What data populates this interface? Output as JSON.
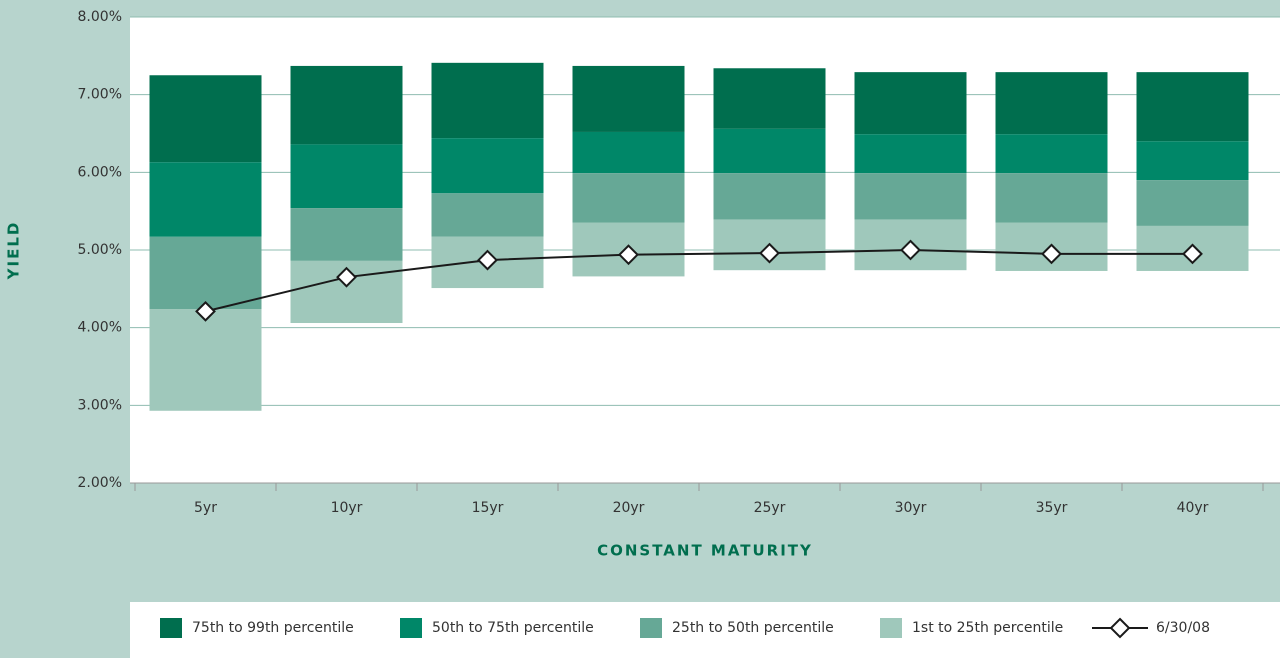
{
  "chart_data": {
    "type": "bar",
    "x_label": "CONSTANT MATURITY",
    "y_label": "YIELD",
    "categories": [
      "5yr",
      "10yr",
      "15yr",
      "20yr",
      "25yr",
      "30yr",
      "35yr",
      "40yr"
    ],
    "ylim": [
      2,
      8
    ],
    "yticks": [
      {
        "value": 2,
        "label": "2.00%"
      },
      {
        "value": 3,
        "label": "3.00%"
      },
      {
        "value": 4,
        "label": "4.00%"
      },
      {
        "value": 5,
        "label": "5.00%"
      },
      {
        "value": 6,
        "label": "6.00%"
      },
      {
        "value": 7,
        "label": "7.00%"
      },
      {
        "value": 8,
        "label": "8.00%"
      }
    ],
    "grid": true,
    "legend": "bottom",
    "series": [
      {
        "name": "75th to 99th percentile",
        "color": "#006e4e",
        "values": [
          [
            6.13,
            7.25
          ],
          [
            6.36,
            7.37
          ],
          [
            6.44,
            7.41
          ],
          [
            6.52,
            7.37
          ],
          [
            6.56,
            7.34
          ],
          [
            6.49,
            7.29
          ],
          [
            6.49,
            7.29
          ],
          [
            6.4,
            7.29
          ]
        ]
      },
      {
        "name": "50th to 75th percentile",
        "color": "#008768",
        "values": [
          [
            5.17,
            6.13
          ],
          [
            5.54,
            6.36
          ],
          [
            5.73,
            6.44
          ],
          [
            5.99,
            6.52
          ],
          [
            5.99,
            6.56
          ],
          [
            5.99,
            6.49
          ],
          [
            5.99,
            6.49
          ],
          [
            5.9,
            6.4
          ]
        ]
      },
      {
        "name": "25th to 50th percentile",
        "color": "#66a896",
        "values": [
          [
            4.24,
            5.17
          ],
          [
            4.86,
            5.54
          ],
          [
            5.17,
            5.73
          ],
          [
            5.35,
            5.99
          ],
          [
            5.39,
            5.99
          ],
          [
            5.39,
            5.99
          ],
          [
            5.35,
            5.99
          ],
          [
            5.31,
            5.9
          ]
        ]
      },
      {
        "name": "1st to 25th percentile",
        "color": "#9fc8bb",
        "values": [
          [
            2.93,
            4.24
          ],
          [
            4.06,
            4.86
          ],
          [
            4.51,
            5.17
          ],
          [
            4.66,
            5.35
          ],
          [
            4.74,
            5.39
          ],
          [
            4.74,
            5.39
          ],
          [
            4.73,
            5.35
          ],
          [
            4.73,
            5.31
          ]
        ]
      },
      {
        "name": "6/30/08",
        "type": "line",
        "color": "#1a1a1a",
        "values": [
          4.21,
          4.65,
          4.87,
          4.94,
          4.96,
          5.0,
          4.95,
          4.95
        ]
      }
    ]
  }
}
